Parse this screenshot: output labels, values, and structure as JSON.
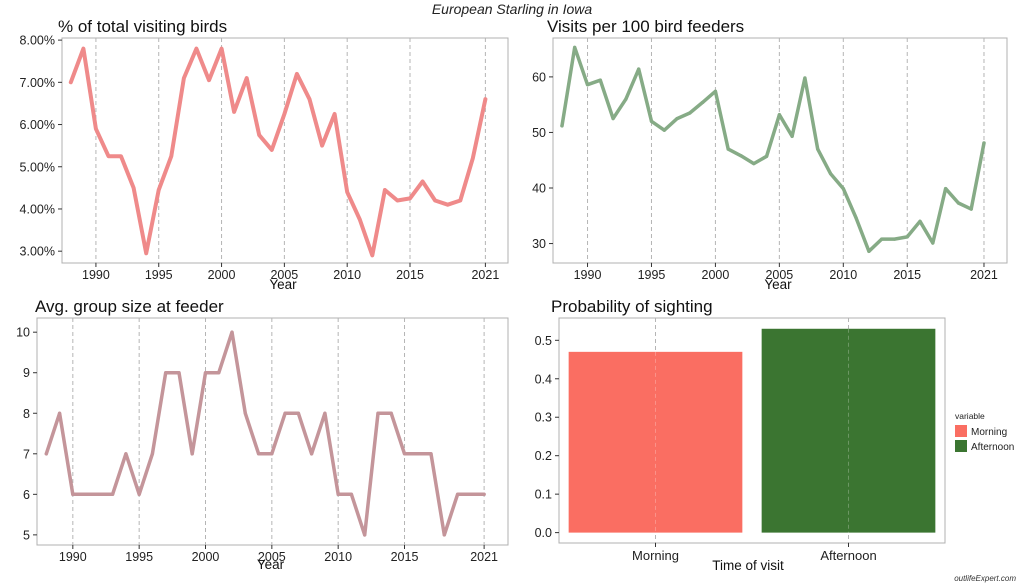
{
  "suptitle": "European Starling in Iowa",
  "watermark": "outlifeExpert.com",
  "colors": {
    "pct": "#ef8a8a",
    "visits": "#86ab86",
    "group": "#c4959a",
    "morning": "#fa6e62",
    "afternoon": "#3b7531",
    "grid": "#b5b5b5",
    "axis": "#333333",
    "panel_border": "#b0b0b0"
  },
  "chart_data": [
    {
      "id": "pct",
      "type": "line",
      "title": "% of total visiting birds",
      "xlabel": "Year",
      "ylabel": "",
      "xlim": [
        1987.3,
        2022.8
      ],
      "ylim": [
        2.72,
        8.05
      ],
      "xticks": [
        1990,
        1995,
        2000,
        2005,
        2010,
        2015,
        2021
      ],
      "yticks": [
        3,
        4,
        5,
        6,
        7,
        8
      ],
      "yticklabels": [
        "3.00%",
        "4.00%",
        "5.00%",
        "6.00%",
        "7.00%",
        "8.00%"
      ],
      "x": [
        1988,
        1989,
        1990,
        1991,
        1992,
        1993,
        1994,
        1995,
        1996,
        1997,
        1998,
        1999,
        2000,
        2001,
        2002,
        2003,
        2004,
        2005,
        2006,
        2007,
        2008,
        2009,
        2010,
        2011,
        2012,
        2013,
        2014,
        2015,
        2016,
        2017,
        2018,
        2019,
        2020,
        2021
      ],
      "series": [
        {
          "values": [
            7.0,
            7.8,
            5.9,
            5.25,
            5.25,
            4.5,
            2.95,
            4.45,
            5.25,
            7.1,
            7.8,
            7.05,
            7.8,
            6.3,
            7.1,
            5.75,
            5.4,
            6.25,
            7.2,
            6.6,
            5.5,
            6.25,
            4.4,
            3.75,
            2.9,
            4.45,
            4.2,
            4.25,
            4.65,
            4.2,
            4.1,
            4.2,
            5.2,
            6.6
          ]
        }
      ]
    },
    {
      "id": "visits",
      "type": "line",
      "title": "Visits per 100 bird feeders",
      "xlabel": "Year",
      "ylabel": "",
      "xlim": [
        1987.3,
        2022.8
      ],
      "ylim": [
        26.5,
        67
      ],
      "xticks": [
        1990,
        1995,
        2000,
        2005,
        2010,
        2015,
        2021
      ],
      "yticks": [
        30,
        40,
        50,
        60
      ],
      "yticklabels": [
        "30",
        "40",
        "50",
        "60"
      ],
      "x": [
        1988,
        1989,
        1990,
        1991,
        1992,
        1993,
        1994,
        1995,
        1996,
        1997,
        1998,
        1999,
        2000,
        2001,
        2002,
        2003,
        2004,
        2005,
        2006,
        2007,
        2008,
        2009,
        2010,
        2011,
        2012,
        2013,
        2014,
        2015,
        2016,
        2017,
        2018,
        2019,
        2020,
        2021
      ],
      "series": [
        {
          "values": [
            51.2,
            65.3,
            58.6,
            59.4,
            52.5,
            56,
            61.4,
            52,
            50.4,
            52.5,
            53.5,
            55.4,
            57.4,
            47,
            45.8,
            44.4,
            45.7,
            53.2,
            49.3,
            59.8,
            47,
            42.6,
            39.9,
            34.6,
            28.6,
            30.8,
            30.8,
            31.2,
            34,
            30.1,
            39.9,
            37.3,
            36.2,
            48.1
          ]
        }
      ]
    },
    {
      "id": "group",
      "type": "line",
      "title": "Avg. group size at feeder",
      "xlabel": "Year",
      "ylabel": "",
      "xlim": [
        1987.3,
        2022.8
      ],
      "ylim": [
        4.75,
        10.35
      ],
      "xticks": [
        1990,
        1995,
        2000,
        2005,
        2010,
        2015,
        2021
      ],
      "yticks": [
        5,
        6,
        7,
        8,
        9,
        10
      ],
      "yticklabels": [
        "5",
        "6",
        "7",
        "8",
        "9",
        "10"
      ],
      "x": [
        1988,
        1989,
        1990,
        1991,
        1992,
        1993,
        1994,
        1995,
        1996,
        1997,
        1998,
        1999,
        2000,
        2001,
        2002,
        2003,
        2004,
        2005,
        2006,
        2007,
        2008,
        2009,
        2010,
        2011,
        2012,
        2013,
        2014,
        2015,
        2016,
        2017,
        2018,
        2019,
        2020,
        2021
      ],
      "series": [
        {
          "values": [
            7,
            8,
            6,
            6,
            6,
            6,
            7,
            6,
            7,
            9,
            9,
            7,
            9,
            9,
            10,
            8,
            7,
            7,
            8,
            8,
            7,
            8,
            6,
            6,
            5,
            8,
            8,
            7,
            7,
            7,
            5,
            6,
            6,
            6
          ]
        }
      ]
    },
    {
      "id": "prob",
      "type": "bar",
      "title": "Probability of sighting",
      "xlabel": "Time of visit",
      "ylabel": "",
      "ylim": [
        -0.027,
        0.558
      ],
      "yticks": [
        0.0,
        0.1,
        0.2,
        0.3,
        0.4,
        0.5
      ],
      "yticklabels": [
        "0.0",
        "0.1",
        "0.2",
        "0.3",
        "0.4",
        "0.5"
      ],
      "categories": [
        "Morning",
        "Afternoon"
      ],
      "values": [
        0.47,
        0.53
      ],
      "legend": {
        "title": "variable",
        "entries": [
          "Morning",
          "Afternoon"
        ],
        "position": "right"
      }
    }
  ]
}
